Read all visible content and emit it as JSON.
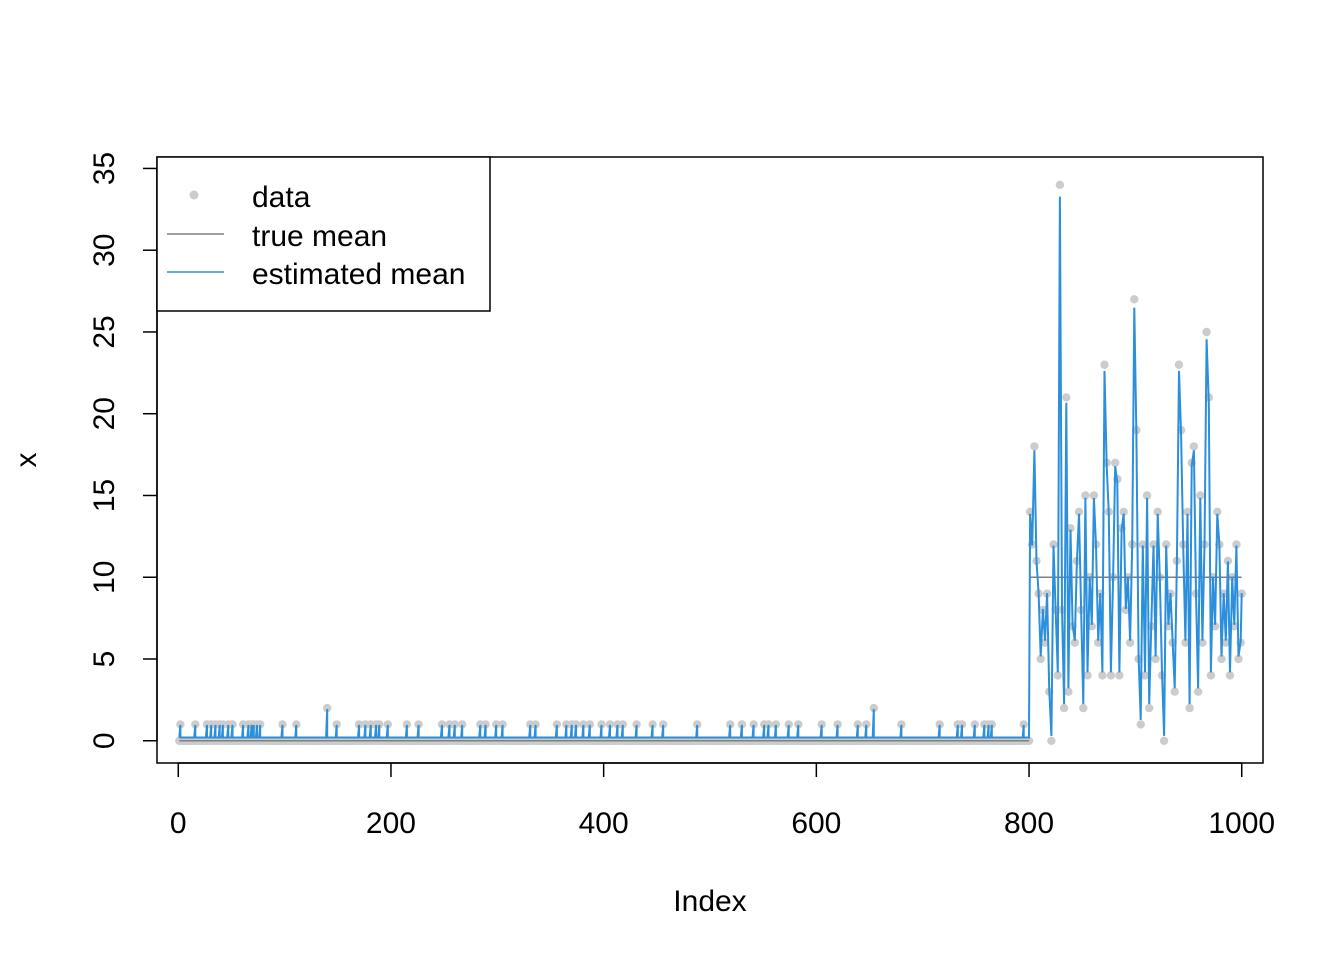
{
  "chart_data": {
    "type": "line",
    "title": "",
    "xlabel": "Index",
    "ylabel": "x",
    "xlim": [
      -20,
      1020
    ],
    "ylim": [
      -1.36,
      35.7
    ],
    "x_ticks": [
      0,
      200,
      400,
      600,
      800,
      1000
    ],
    "x_tick_labels": [
      "0",
      "200",
      "400",
      "600",
      "800",
      "1000"
    ],
    "y_ticks": [
      0,
      5,
      10,
      15,
      20,
      25,
      30,
      35
    ],
    "y_tick_labels": [
      "0",
      "5",
      "10",
      "15",
      "20",
      "25",
      "30",
      "35"
    ],
    "legend": {
      "position": "top-left",
      "entries": [
        "data",
        "true mean",
        "estimated mean"
      ]
    },
    "colors": {
      "data": "#cccccc",
      "true_mean": "#808080",
      "estimated_mean": "#2b8fdb"
    },
    "series": [
      {
        "name": "data",
        "kind": "points",
        "description_of_baseline": "zeros for 1..800 except listed nonzero points",
        "nonzero_low_segment": [
          [
            2,
            1
          ],
          [
            16,
            1
          ],
          [
            27,
            1
          ],
          [
            31,
            1
          ],
          [
            35,
            1
          ],
          [
            39,
            1
          ],
          [
            42,
            1
          ],
          [
            47,
            1
          ],
          [
            51,
            1
          ],
          [
            61,
            1
          ],
          [
            66,
            1
          ],
          [
            69,
            1
          ],
          [
            71,
            1
          ],
          [
            74,
            1
          ],
          [
            77,
            1
          ],
          [
            98,
            1
          ],
          [
            111,
            1
          ],
          [
            140,
            2
          ],
          [
            149,
            1
          ],
          [
            170,
            1
          ],
          [
            176,
            1
          ],
          [
            181,
            1
          ],
          [
            186,
            1
          ],
          [
            189,
            1
          ],
          [
            197,
            1
          ],
          [
            215,
            1
          ],
          [
            226,
            1
          ],
          [
            248,
            1
          ],
          [
            255,
            1
          ],
          [
            260,
            1
          ],
          [
            267,
            1
          ],
          [
            284,
            1
          ],
          [
            289,
            1
          ],
          [
            299,
            1
          ],
          [
            305,
            1
          ],
          [
            331,
            1
          ],
          [
            336,
            1
          ],
          [
            356,
            1
          ],
          [
            365,
            1
          ],
          [
            370,
            1
          ],
          [
            374,
            1
          ],
          [
            381,
            1
          ],
          [
            387,
            1
          ],
          [
            398,
            1
          ],
          [
            406,
            1
          ],
          [
            413,
            1
          ],
          [
            418,
            1
          ],
          [
            431,
            1
          ],
          [
            446,
            1
          ],
          [
            456,
            1
          ],
          [
            488,
            1
          ],
          [
            519,
            1
          ],
          [
            530,
            1
          ],
          [
            541,
            1
          ],
          [
            551,
            1
          ],
          [
            555,
            1
          ],
          [
            562,
            1
          ],
          [
            574,
            1
          ],
          [
            583,
            1
          ],
          [
            605,
            1
          ],
          [
            620,
            1
          ],
          [
            639,
            1
          ],
          [
            647,
            1
          ],
          [
            654,
            2
          ],
          [
            680,
            1
          ],
          [
            716,
            1
          ],
          [
            733,
            1
          ],
          [
            737,
            1
          ],
          [
            749,
            1
          ],
          [
            758,
            1
          ],
          [
            762,
            1
          ],
          [
            765,
            1
          ],
          [
            795,
            1
          ]
        ],
        "high_segment": [
          [
            801,
            14
          ],
          [
            803,
            12
          ],
          [
            805,
            18
          ],
          [
            807,
            11
          ],
          [
            809,
            9
          ],
          [
            811,
            5
          ],
          [
            813,
            8
          ],
          [
            815,
            6
          ],
          [
            817,
            9
          ],
          [
            819,
            3
          ],
          [
            821,
            0
          ],
          [
            823,
            12
          ],
          [
            825,
            8
          ],
          [
            827,
            4
          ],
          [
            829,
            34
          ],
          [
            831,
            8
          ],
          [
            833,
            2
          ],
          [
            835,
            21
          ],
          [
            837,
            3
          ],
          [
            839,
            13
          ],
          [
            841,
            7
          ],
          [
            843,
            6
          ],
          [
            845,
            11
          ],
          [
            847,
            14
          ],
          [
            849,
            8
          ],
          [
            851,
            2
          ],
          [
            853,
            15
          ],
          [
            855,
            4
          ],
          [
            857,
            10
          ],
          [
            859,
            7
          ],
          [
            861,
            15
          ],
          [
            863,
            12
          ],
          [
            865,
            6
          ],
          [
            867,
            9
          ],
          [
            869,
            4
          ],
          [
            871,
            23
          ],
          [
            873,
            17
          ],
          [
            875,
            14
          ],
          [
            877,
            4
          ],
          [
            879,
            10
          ],
          [
            881,
            17
          ],
          [
            883,
            16
          ],
          [
            885,
            4
          ],
          [
            887,
            13
          ],
          [
            889,
            14
          ],
          [
            891,
            8
          ],
          [
            893,
            10
          ],
          [
            895,
            6
          ],
          [
            897,
            12
          ],
          [
            899,
            27
          ],
          [
            901,
            19
          ],
          [
            903,
            5
          ],
          [
            905,
            1
          ],
          [
            907,
            12
          ],
          [
            909,
            4
          ],
          [
            911,
            15
          ],
          [
            913,
            2
          ],
          [
            915,
            7
          ],
          [
            917,
            12
          ],
          [
            919,
            5
          ],
          [
            921,
            14
          ],
          [
            923,
            10
          ],
          [
            925,
            4
          ],
          [
            927,
            0
          ],
          [
            929,
            12
          ],
          [
            931,
            7
          ],
          [
            933,
            9
          ],
          [
            935,
            6
          ],
          [
            937,
            3
          ],
          [
            939,
            11
          ],
          [
            941,
            23
          ],
          [
            943,
            19
          ],
          [
            945,
            12
          ],
          [
            947,
            6
          ],
          [
            949,
            14
          ],
          [
            951,
            2
          ],
          [
            953,
            17
          ],
          [
            955,
            18
          ],
          [
            957,
            9
          ],
          [
            959,
            3
          ],
          [
            961,
            15
          ],
          [
            963,
            6
          ],
          [
            965,
            12
          ],
          [
            967,
            25
          ],
          [
            969,
            21
          ],
          [
            971,
            4
          ],
          [
            973,
            10
          ],
          [
            975,
            7
          ],
          [
            977,
            14
          ],
          [
            979,
            12
          ],
          [
            981,
            5
          ],
          [
            983,
            9
          ],
          [
            985,
            6
          ],
          [
            987,
            11
          ],
          [
            989,
            4
          ],
          [
            991,
            10
          ],
          [
            993,
            7
          ],
          [
            995,
            12
          ],
          [
            997,
            5
          ],
          [
            999,
            6
          ],
          [
            1000,
            9
          ]
        ]
      },
      {
        "name": "true mean",
        "kind": "step",
        "segments": [
          {
            "x": [
              1,
              800
            ],
            "y": 0
          },
          {
            "x": [
              801,
              1000
            ],
            "y": 10
          }
        ]
      },
      {
        "name": "estimated mean",
        "kind": "line",
        "baseline_low_segment": 0.2,
        "note": "rises towards each nonzero data point and follows the high-segment data closely"
      }
    ]
  }
}
